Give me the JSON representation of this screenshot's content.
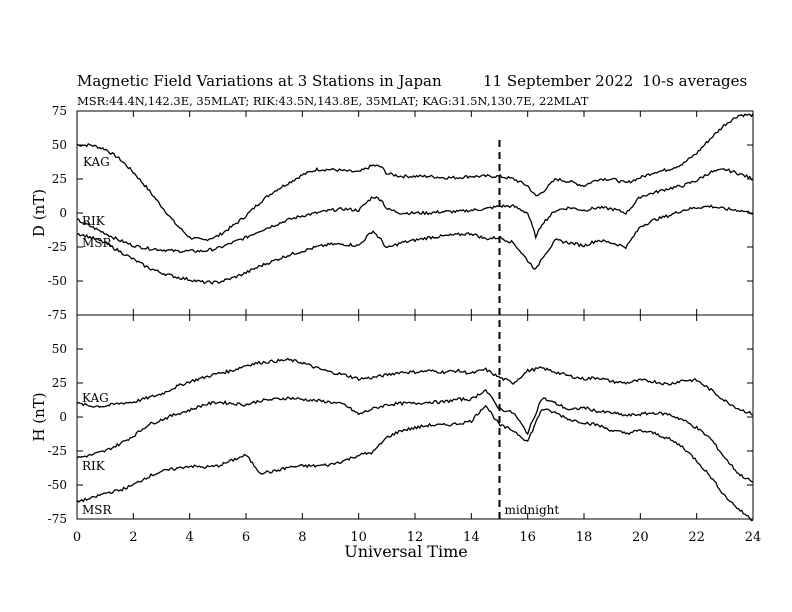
{
  "header": {
    "title": "Magnetic Field Variations at 3 Stations in Japan",
    "date": "11 September 2022",
    "averaging": "10-s averages",
    "stations_line": "MSR:44.4N,142.3E, 35MLAT;  RIK:43.5N,143.8E, 35MLAT;  KAG:31.5N,130.7E, 22MLAT"
  },
  "chart_data": [
    {
      "type": "line",
      "panel": "D",
      "ylabel": "D (nT)",
      "ylim": [
        -75,
        75
      ],
      "yticks": [
        -75,
        -50,
        -25,
        0,
        25,
        50,
        75
      ],
      "xlim": [
        0,
        24
      ],
      "xticks": [
        0,
        2,
        4,
        6,
        8,
        10,
        12,
        14,
        16,
        18,
        20,
        22,
        24
      ],
      "grid": false,
      "series": [
        {
          "name": "KAG",
          "x": [
            0,
            0.5,
            1,
            1.5,
            2,
            2.5,
            3,
            3.5,
            4,
            4.5,
            5,
            5.5,
            6,
            6.5,
            7,
            7.5,
            8,
            8.5,
            9,
            9.5,
            10,
            10.5,
            10.8,
            11,
            11.5,
            12,
            12.5,
            13,
            13.5,
            14,
            14.5,
            15,
            15.5,
            16,
            16.3,
            16.5,
            17,
            17.5,
            18,
            18.5,
            19,
            19.5,
            20,
            20.5,
            21,
            21.5,
            22,
            22.5,
            23,
            23.5,
            24
          ],
          "values": [
            50,
            50,
            47,
            40,
            30,
            18,
            5,
            -8,
            -18,
            -20,
            -17,
            -10,
            -2,
            8,
            16,
            22,
            28,
            32,
            32,
            31,
            30,
            35,
            34,
            29,
            27,
            27,
            27,
            26,
            26,
            27,
            27,
            27,
            25,
            20,
            12,
            15,
            25,
            23,
            20,
            25,
            25,
            22,
            26,
            30,
            32,
            36,
            44,
            55,
            65,
            72,
            72
          ]
        },
        {
          "name": "RIK",
          "x": [
            0,
            0.5,
            1,
            1.5,
            2,
            2.5,
            3,
            3.5,
            4,
            4.5,
            5,
            5.5,
            6,
            6.5,
            7,
            7.5,
            8,
            8.5,
            9,
            9.5,
            10,
            10.5,
            10.8,
            11,
            11.5,
            12,
            12.5,
            13,
            13.5,
            14,
            14.5,
            15,
            15.5,
            16,
            16.3,
            16.5,
            17,
            17.5,
            18,
            18.5,
            19,
            19.5,
            20,
            20.5,
            21,
            21.5,
            22,
            22.5,
            23,
            23.5,
            24
          ],
          "values": [
            -5,
            -10,
            -15,
            -20,
            -24,
            -26,
            -27,
            -28,
            -28,
            -28,
            -26,
            -22,
            -18,
            -13,
            -9,
            -5,
            -2,
            0,
            2,
            3,
            2,
            12,
            10,
            3,
            0,
            0,
            0,
            1,
            1,
            2,
            3,
            5,
            5,
            0,
            -18,
            -8,
            2,
            4,
            2,
            4,
            3,
            0,
            12,
            15,
            18,
            20,
            24,
            30,
            32,
            29,
            25
          ]
        },
        {
          "name": "MSR",
          "x": [
            0,
            0.5,
            1,
            1.5,
            2,
            2.5,
            3,
            3.5,
            4,
            4.5,
            5,
            5.5,
            6,
            6.5,
            7,
            7.5,
            8,
            8.5,
            9,
            9.5,
            10,
            10.5,
            10.8,
            11,
            11.5,
            12,
            12.5,
            13,
            13.5,
            14,
            14.5,
            15,
            15.5,
            16,
            16.3,
            16.5,
            17,
            17.5,
            18,
            18.5,
            19,
            19.5,
            20,
            20.5,
            21,
            21.5,
            22,
            22.5,
            23,
            23.5,
            24
          ],
          "values": [
            -15,
            -18,
            -22,
            -28,
            -34,
            -40,
            -44,
            -47,
            -49,
            -51,
            -51,
            -48,
            -44,
            -39,
            -35,
            -31,
            -28,
            -25,
            -23,
            -23,
            -24,
            -13,
            -20,
            -26,
            -22,
            -20,
            -18,
            -17,
            -16,
            -15,
            -19,
            -18,
            -22,
            -35,
            -42,
            -33,
            -20,
            -22,
            -24,
            -20,
            -22,
            -25,
            -10,
            -5,
            -2,
            2,
            4,
            5,
            3,
            2,
            0
          ]
        }
      ],
      "annotations": [
        "KAG",
        "RIK",
        "MSR"
      ]
    },
    {
      "type": "line",
      "panel": "H",
      "ylabel": "H (nT)",
      "xlabel": "Universal Time",
      "ylim": [
        -75,
        75
      ],
      "yticks": [
        -75,
        -50,
        -25,
        0,
        25,
        50,
        75
      ],
      "xlim": [
        0,
        24
      ],
      "xticks": [
        0,
        2,
        4,
        6,
        8,
        10,
        12,
        14,
        16,
        18,
        20,
        22,
        24
      ],
      "grid": false,
      "series": [
        {
          "name": "KAG",
          "x": [
            0,
            0.5,
            1,
            1.5,
            2,
            2.5,
            3,
            3.5,
            4,
            4.5,
            5,
            5.5,
            6,
            6.5,
            7,
            7.5,
            8,
            8.5,
            9,
            9.5,
            10,
            10.5,
            11,
            11.5,
            12,
            12.5,
            13,
            13.5,
            14,
            14.5,
            15,
            15.5,
            16,
            16.5,
            17,
            17.5,
            18,
            18.5,
            19,
            19.5,
            20,
            20.5,
            21,
            21.5,
            22,
            22.5,
            23,
            23.5,
            24
          ],
          "values": [
            10,
            8,
            8,
            10,
            11,
            14,
            17,
            22,
            26,
            29,
            32,
            34,
            38,
            40,
            41,
            42,
            40,
            36,
            33,
            31,
            28,
            29,
            31,
            33,
            33,
            34,
            33,
            34,
            32,
            35,
            29,
            25,
            34,
            36,
            33,
            30,
            28,
            29,
            26,
            25,
            27,
            26,
            24,
            27,
            27,
            20,
            12,
            6,
            2
          ]
        },
        {
          "name": "RIK",
          "x": [
            0,
            0.5,
            1,
            1.5,
            2,
            2.5,
            3,
            3.5,
            4,
            4.5,
            5,
            5.5,
            6,
            6.5,
            7,
            7.5,
            8,
            8.5,
            9,
            9.5,
            10,
            10.5,
            11,
            11.5,
            12,
            12.5,
            13,
            13.5,
            14,
            14.5,
            15,
            15.5,
            16,
            16.5,
            17,
            17.5,
            18,
            18.5,
            19,
            19.5,
            20,
            20.5,
            21,
            21.5,
            22,
            22.5,
            23,
            23.5,
            24
          ],
          "values": [
            -30,
            -28,
            -25,
            -20,
            -14,
            -6,
            -2,
            2,
            5,
            9,
            11,
            10,
            9,
            12,
            13,
            14,
            13,
            12,
            11,
            9,
            2,
            6,
            9,
            10,
            10,
            11,
            11,
            13,
            13,
            20,
            6,
            3,
            -12,
            14,
            10,
            5,
            7,
            4,
            3,
            1,
            2,
            3,
            2,
            -2,
            -8,
            -16,
            -30,
            -42,
            -48
          ]
        },
        {
          "name": "MSR",
          "x": [
            0,
            0.5,
            1,
            1.5,
            2,
            2.5,
            3,
            3.5,
            4,
            4.5,
            5,
            5.5,
            6,
            6.5,
            7,
            7.5,
            8,
            8.5,
            9,
            9.5,
            10,
            10.5,
            11,
            11.5,
            12,
            12.5,
            13,
            13.5,
            14,
            14.5,
            15,
            15.5,
            16,
            16.5,
            17,
            17.5,
            18,
            18.5,
            19,
            19.5,
            20,
            20.5,
            21,
            21.5,
            22,
            22.5,
            23,
            23.5,
            24
          ],
          "values": [
            -62,
            -60,
            -56,
            -54,
            -50,
            -44,
            -40,
            -38,
            -36,
            -37,
            -36,
            -32,
            -28,
            -41,
            -40,
            -37,
            -36,
            -36,
            -35,
            -32,
            -28,
            -26,
            -15,
            -10,
            -8,
            -6,
            -6,
            -5,
            -3,
            9,
            -6,
            -10,
            -18,
            6,
            3,
            -2,
            -4,
            -6,
            -10,
            -12,
            -10,
            -12,
            -16,
            -22,
            -32,
            -44,
            -58,
            -68,
            -76
          ]
        }
      ],
      "annotations": [
        "KAG",
        "RIK",
        "MSR",
        "midnight"
      ],
      "marker_line_x": 15
    }
  ]
}
